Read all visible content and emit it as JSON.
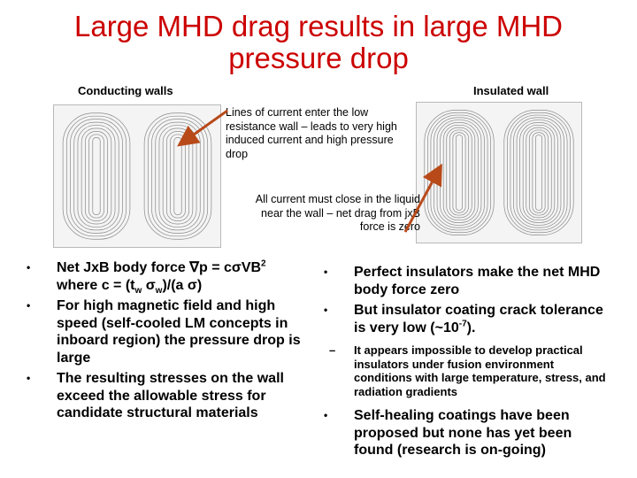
{
  "slide": {
    "title": "Large MHD drag results in large MHD pressure drop",
    "left_plot_label": "Conducting walls",
    "right_plot_label": "Insulated wall",
    "annotation_top": "Lines of current enter the low resistance wall – leads to very high induced current and high pressure drop",
    "annotation_bottom": "All current must close in the liquid near the wall – net drag from jxB force is zero"
  },
  "colors": {
    "title": "#cc0000",
    "arrow": "#b84a1a",
    "contour": "#8a8a8a"
  },
  "left_bullets": {
    "b1_text": "Net JxB body force ",
    "b1_formula": "p = cVB",
    "b1_line2": "where c = (t",
    "b1_line2b": "w",
    "b1_line2c": ")/(a )",
    "b2": "For high magnetic field and high speed (self-cooled LM concepts in inboard region) the pressure drop is large",
    "b3": "The resulting stresses on the wall exceed the allowable stress for candidate structural materials"
  },
  "right_bullets": {
    "b1": "Perfect insulators make the net MHD body force zero",
    "b2_text": "But insulator coating crack tolerance is very low (~10",
    "b2_exp": "-7",
    "b2_end": ").",
    "sub1": "It appears impossible to develop practical insulators under fusion environment conditions with large temperature, stress, and radiation gradients",
    "b3": "Self-healing coatings have been proposed but none has yet been found (research is on-going)"
  }
}
